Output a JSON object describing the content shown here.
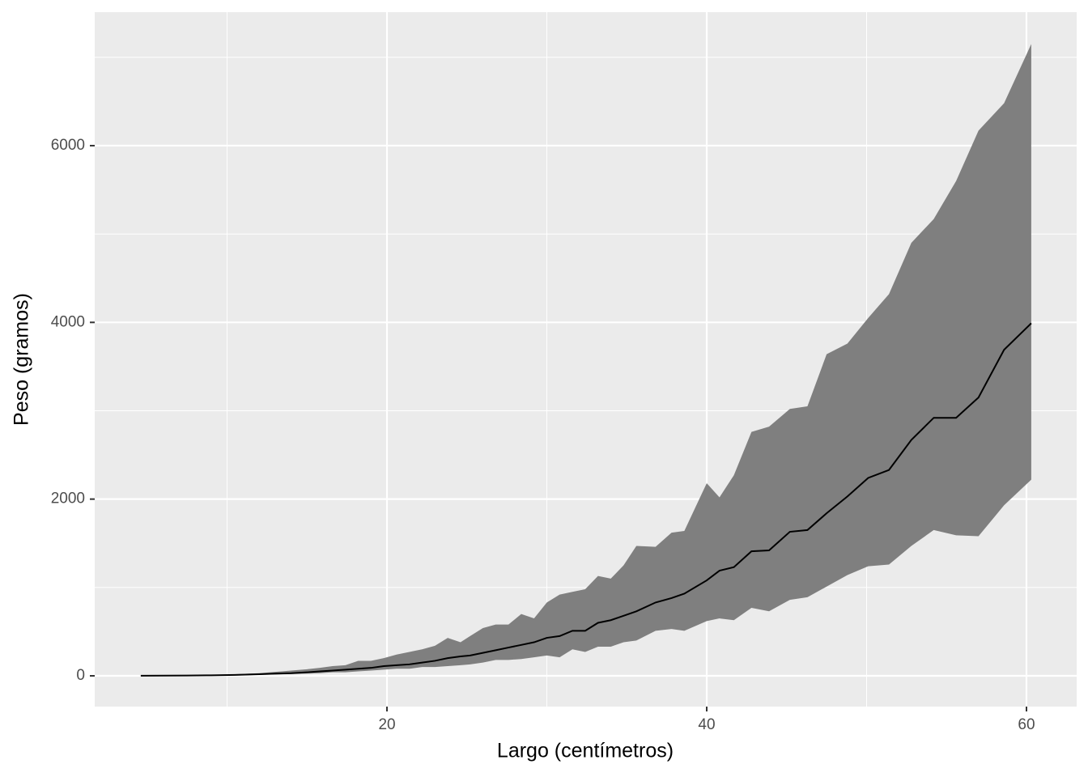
{
  "chart_data": {
    "type": "ribbon-line",
    "x_label": "Largo (centímetros)",
    "y_label": "Peso (gramos)",
    "x": [
      4.6,
      6,
      7.5,
      9,
      10.5,
      12,
      13,
      14,
      15,
      15.8,
      16.6,
      17.4,
      18.2,
      19,
      19.8,
      20.6,
      21.4,
      22.2,
      23,
      23.8,
      24.6,
      25.2,
      26,
      26.8,
      27.6,
      28.4,
      29.2,
      30,
      30.8,
      31.6,
      32.4,
      33.2,
      34,
      34.8,
      35.6,
      36.8,
      37.8,
      38.6,
      40,
      40.8,
      41.7,
      42.8,
      43.9,
      45.2,
      46.3,
      47.5,
      48.8,
      50.1,
      51.4,
      52.8,
      54.2,
      55.6,
      57,
      58.6,
      60.3
    ],
    "series": [
      {
        "color": "#000000",
        "values": [
          1,
          2,
          3,
          6,
          10,
          18,
          25,
          30,
          40,
          50,
          60,
          70,
          80,
          90,
          110,
          120,
          130,
          150,
          170,
          200,
          220,
          230,
          260,
          290,
          320,
          350,
          380,
          430,
          450,
          510,
          510,
          600,
          630,
          680,
          730,
          830,
          880,
          930,
          1080,
          1190,
          1230,
          1410,
          1420,
          1630,
          1650,
          1840,
          2030,
          2240,
          2330,
          2670,
          2920,
          2920,
          3150,
          3690,
          3990
        ]
      }
    ],
    "ribbon": {
      "color": "#7f7f7f",
      "lower": [
        0.5,
        1,
        2,
        3,
        6,
        10,
        15,
        20,
        25,
        30,
        40,
        40,
        50,
        60,
        70,
        80,
        80,
        100,
        100,
        110,
        120,
        130,
        150,
        180,
        180,
        190,
        210,
        230,
        210,
        300,
        270,
        330,
        330,
        380,
        400,
        510,
        530,
        510,
        620,
        650,
        630,
        770,
        730,
        860,
        890,
        1010,
        1140,
        1240,
        1260,
        1470,
        1650,
        1590,
        1580,
        1930,
        2220
      ],
      "upper": [
        1,
        3,
        5,
        10,
        18,
        30,
        45,
        60,
        75,
        90,
        110,
        120,
        170,
        170,
        200,
        240,
        270,
        300,
        340,
        430,
        380,
        450,
        540,
        580,
        580,
        700,
        650,
        830,
        920,
        950,
        980,
        1130,
        1100,
        1250,
        1470,
        1460,
        1620,
        1640,
        2180,
        2020,
        2270,
        2760,
        2820,
        3020,
        3050,
        3640,
        3760,
        4050,
        4320,
        4900,
        5170,
        5600,
        6170,
        6480,
        7150
      ]
    },
    "xlim": [
      1.72,
      63.14
    ],
    "xticks": [
      20,
      40,
      60
    ],
    "xminor": [
      10,
      30,
      50
    ],
    "ylim": [
      -348,
      7511
    ],
    "yticks": [
      0,
      2000,
      4000,
      6000
    ],
    "yminor": [
      1000,
      3000,
      5000,
      7000
    ],
    "grid": true
  }
}
